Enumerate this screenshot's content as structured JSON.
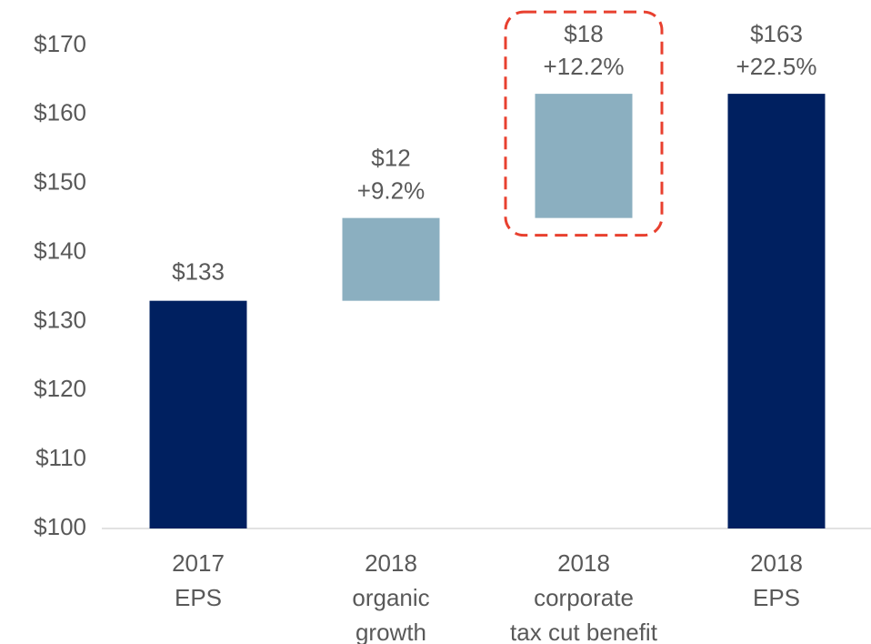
{
  "chart_data": {
    "type": "waterfall",
    "categories": [
      [
        "2017",
        "EPS"
      ],
      [
        "2018",
        "organic",
        "growth"
      ],
      [
        "2018",
        "corporate",
        "tax cut benefit"
      ],
      [
        "2018",
        "EPS"
      ]
    ],
    "kinds": [
      "total",
      "delta",
      "delta",
      "total"
    ],
    "values": [
      133,
      12,
      18,
      163
    ],
    "value_labels": [
      "$133",
      "$12",
      "$18",
      "$163"
    ],
    "change_labels": [
      null,
      "+9.2%",
      "+12.2%",
      "+22.5%"
    ],
    "colors": {
      "total": "#002060",
      "delta": "#8bafc0"
    },
    "highlight": 2,
    "highlight_color": "#e8402f",
    "ylim": [
      100,
      176
    ],
    "yticks": [
      {
        "value": 100,
        "label": "$100"
      },
      {
        "value": 110,
        "label": "$110"
      },
      {
        "value": 120,
        "label": "$120"
      },
      {
        "value": 130,
        "label": "$130"
      },
      {
        "value": 140,
        "label": "$140"
      },
      {
        "value": 150,
        "label": "$150"
      },
      {
        "value": 160,
        "label": "$160"
      },
      {
        "value": 170,
        "label": "$170"
      }
    ],
    "grid": false
  }
}
